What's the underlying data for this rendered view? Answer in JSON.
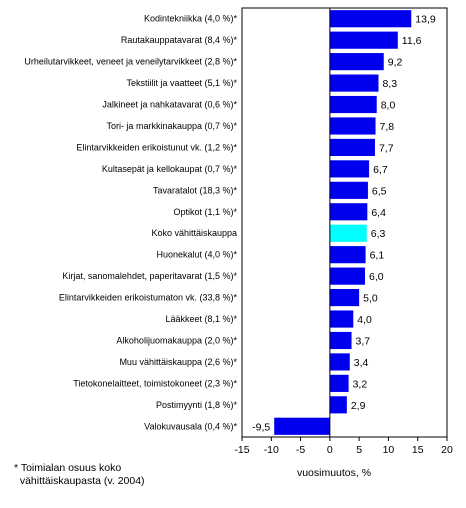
{
  "chart_data": {
    "type": "bar",
    "orientation": "horizontal",
    "categories": [
      "Kodintekniikka (4,0 %)*",
      "Rautakauppatavarat (8,4 %)*",
      "Urheilutarvikkeet, veneet ja veneilytarvikkeet (2,8 %)*",
      "Tekstiilit ja vaatteet (5,1 %)*",
      "Jalkineet ja nahkatavarat (0,6 %)*",
      "Tori- ja markkinakauppa (0,7 %)*",
      "Elintarvikkeiden erikoistunut vk. (1,2 %)*",
      "Kultasepät ja kellokaupat (0,7 %)*",
      "Tavaratalot (18,3 %)*",
      "Optikot (1,1 %)*",
      "Koko vähittäiskauppa",
      "Huonekalut (4,0 %)*",
      "Kirjat, sanomalehdet, paperitavarat (1,5 %)*",
      "Elintarvikkeiden erikoistumaton vk. (33,8 %)*",
      "Lääkkeet (8,1 %)*",
      "Alkoholijuomakauppa (2,0 %)*",
      "Muu vähittäiskauppa (2,6 %)*",
      "Tietokonelaitteet, toimistokoneet (2,3 %)*",
      "Postimyynti (1,8 %)*",
      "Valokuvausala (0,4 %)*"
    ],
    "values": [
      13.9,
      11.6,
      9.2,
      8.3,
      8.0,
      7.8,
      7.7,
      6.7,
      6.5,
      6.4,
      6.3,
      6.1,
      6.0,
      5.0,
      4.0,
      3.7,
      3.4,
      3.2,
      2.9,
      -9.5
    ],
    "value_labels": [
      "13,9",
      "11,6",
      "9,2",
      "8,3",
      "8,0",
      "7,8",
      "7,7",
      "6,7",
      "6,5",
      "6,4",
      "6,3",
      "6,1",
      "6,0",
      "5,0",
      "4,0",
      "3,7",
      "3,4",
      "3,2",
      "2,9",
      "-9,5"
    ],
    "highlight_index": 10,
    "xlabel": "vuosimuutos, %",
    "xlim": [
      -15,
      20
    ],
    "xticks": [
      -15,
      -10,
      -5,
      0,
      5,
      10,
      15,
      20
    ],
    "grid": false,
    "colors": {
      "bar": "#0000ee",
      "highlight": "#00ffff",
      "outline": "#000000"
    }
  },
  "footnote": "* Toimialan osuus koko\n  vähittäiskaupasta (v. 2004)"
}
